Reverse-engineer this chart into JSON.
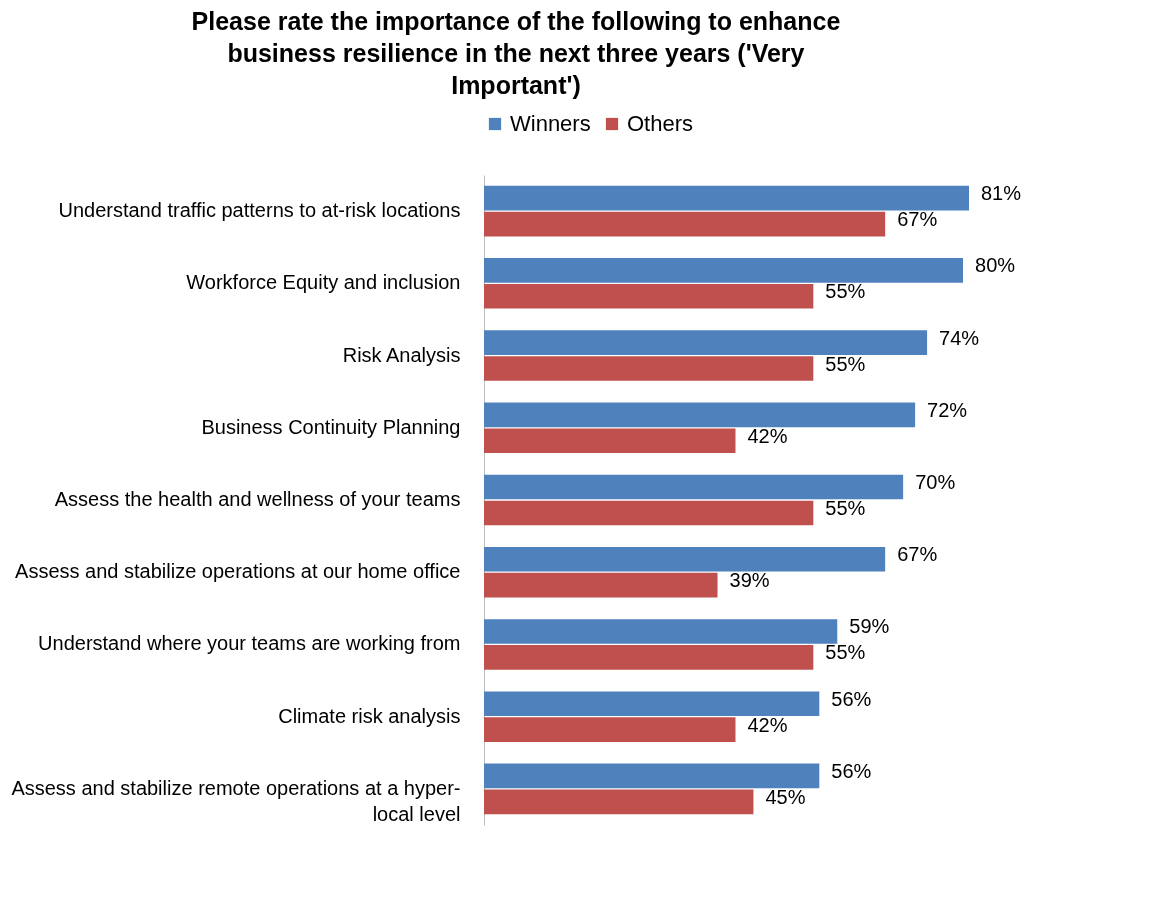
{
  "chart_data": {
    "type": "bar",
    "orientation": "horizontal",
    "title": "Please rate the importance of the following to enhance business resilience in the next three years ('Very Important')",
    "categories": [
      "Understand traffic patterns to at-risk locations",
      "Workforce Equity and inclusion",
      "Risk Analysis",
      "Business Continuity Planning",
      "Assess the health and wellness of your teams",
      "Assess and stabilize operations at our home office",
      "Understand where your teams are working from",
      "Climate risk analysis",
      "Assess and stabilize remote operations at a hyper-local level"
    ],
    "series": [
      {
        "name": "Winners",
        "color": "#4f81bd",
        "values": [
          81,
          80,
          74,
          72,
          70,
          67,
          59,
          56,
          56
        ],
        "value_labels": [
          "81%",
          "80%",
          "74%",
          "72%",
          "70%",
          "67%",
          "59%",
          "56%",
          "56%"
        ]
      },
      {
        "name": "Others",
        "color": "#c0504d",
        "values": [
          67,
          55,
          55,
          42,
          55,
          39,
          55,
          42,
          45
        ],
        "value_labels": [
          "67%",
          "55%",
          "55%",
          "42%",
          "55%",
          "39%",
          "55%",
          "42%",
          "45%"
        ]
      }
    ],
    "legend": "top"
  }
}
